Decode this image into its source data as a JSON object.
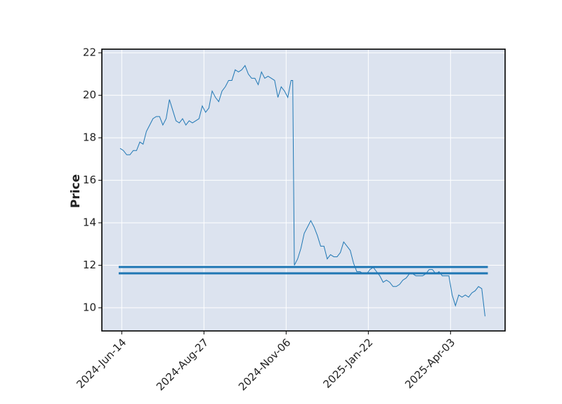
{
  "chart_data": {
    "type": "line",
    "y_label": "Price",
    "x": [
      0,
      2,
      4,
      6,
      8,
      10,
      12,
      14,
      16,
      18,
      20,
      22,
      24,
      26,
      28,
      30,
      32,
      34,
      36,
      38,
      40,
      42,
      44,
      46,
      48,
      50,
      52,
      54,
      56,
      58,
      60,
      62,
      64,
      66,
      68,
      70,
      72,
      74,
      76,
      78,
      80,
      82,
      84,
      86,
      88,
      90,
      92,
      94,
      96,
      98,
      100,
      102,
      104,
      105,
      106,
      108,
      110,
      112,
      114,
      116,
      118,
      120,
      122,
      124,
      126,
      128,
      130,
      132,
      134,
      136,
      138,
      140,
      142,
      144,
      146,
      148,
      150,
      152,
      154,
      156,
      158,
      160,
      162,
      164,
      166,
      168,
      170,
      172,
      174,
      176,
      178,
      180,
      182,
      184,
      186,
      188,
      190,
      192,
      194,
      196,
      198,
      200,
      202,
      204,
      206,
      208,
      210,
      212,
      214,
      216,
      218,
      220,
      222
    ],
    "values": [
      17.5,
      17.4,
      17.2,
      17.2,
      17.4,
      17.4,
      17.8,
      17.7,
      18.3,
      18.6,
      18.9,
      19.0,
      19.0,
      18.6,
      18.9,
      19.8,
      19.3,
      18.8,
      18.7,
      18.9,
      18.6,
      18.8,
      18.7,
      18.8,
      18.9,
      19.5,
      19.2,
      19.4,
      20.2,
      19.9,
      19.7,
      20.2,
      20.4,
      20.7,
      20.7,
      21.2,
      21.1,
      21.2,
      21.4,
      21.0,
      20.8,
      20.8,
      20.5,
      21.1,
      20.8,
      20.9,
      20.8,
      20.7,
      19.9,
      20.4,
      20.2,
      19.9,
      20.7,
      20.7,
      12.0,
      12.3,
      12.8,
      13.5,
      13.8,
      14.1,
      13.8,
      13.4,
      12.9,
      12.9,
      12.3,
      12.5,
      12.4,
      12.4,
      12.6,
      13.1,
      12.9,
      12.7,
      12.1,
      11.7,
      11.7,
      11.6,
      11.6,
      11.8,
      11.9,
      11.7,
      11.5,
      11.2,
      11.3,
      11.2,
      11.0,
      11.0,
      11.1,
      11.3,
      11.4,
      11.6,
      11.6,
      11.5,
      11.5,
      11.5,
      11.6,
      11.8,
      11.8,
      11.6,
      11.7,
      11.5,
      11.5,
      11.5,
      10.6,
      10.1,
      10.6,
      10.5,
      10.6,
      10.5,
      10.7,
      10.8,
      11.0,
      10.9,
      9.6
    ],
    "color": "#1f77b4",
    "hlines": [
      11.92,
      11.62
    ],
    "hline_color": "#1f77b4",
    "xlim": [
      -11.1,
      234.2
    ],
    "xticks": [
      {
        "value": 1,
        "label": "2024-Jun-14"
      },
      {
        "value": 51,
        "label": "2024-Aug-27"
      },
      {
        "value": 101,
        "label": "2024-Nov-06"
      },
      {
        "value": 151,
        "label": "2025-Jan-22"
      },
      {
        "value": 201,
        "label": "2025-Apr-03"
      }
    ],
    "ylim": [
      8.91,
      22.17
    ],
    "yticks": [
      10,
      12,
      14,
      16,
      18,
      20,
      22
    ],
    "grid": true
  }
}
